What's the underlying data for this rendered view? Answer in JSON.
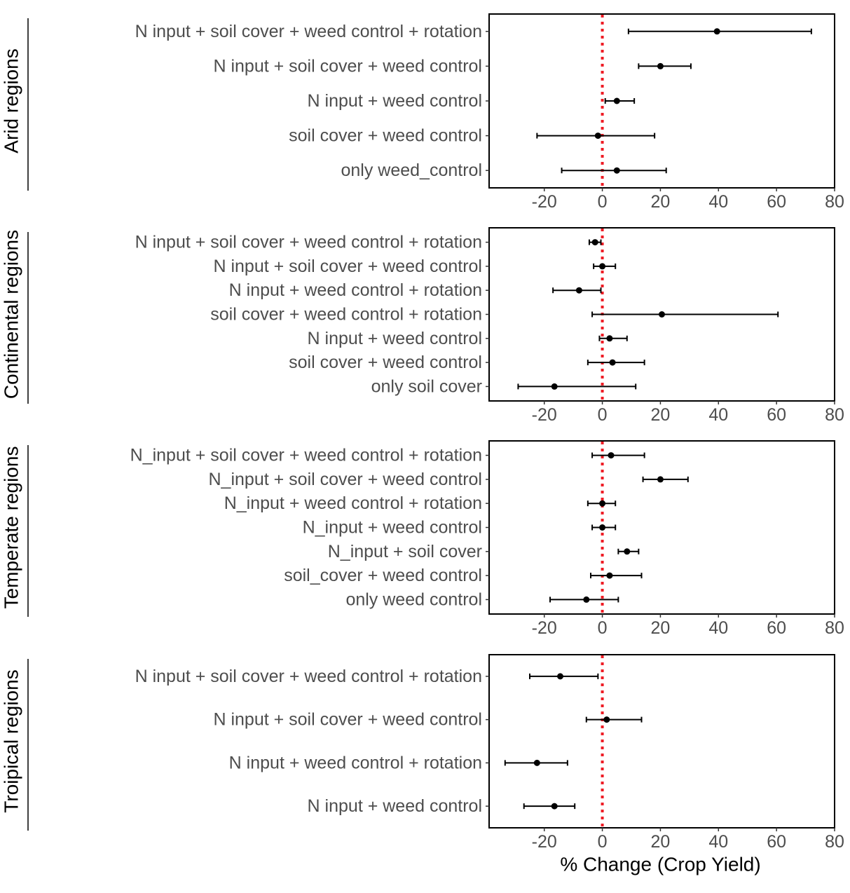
{
  "chart_data": {
    "type": "forest",
    "xlabel": "% Change (Crop Yield)",
    "xlim": [
      -39,
      80
    ],
    "xticks": [
      -20,
      0,
      20,
      40,
      60,
      80
    ],
    "xtick_labels": [
      "-20",
      "0",
      "20",
      "40",
      "60",
      "80"
    ],
    "reference_line": 0,
    "colors": {
      "points": "#000000",
      "reference_line": "#ee1c25",
      "labels": "#4d4d4d"
    },
    "panels": [
      {
        "region": "Arid  regions",
        "rows": [
          {
            "label": "N input + soil cover + weed control + rotation",
            "estimate": 39.5,
            "lower": 9,
            "upper": 72
          },
          {
            "label": "N input + soil cover + weed control",
            "estimate": 20,
            "lower": 12.5,
            "upper": 30.5
          },
          {
            "label": "N input + weed control",
            "estimate": 5,
            "lower": 1,
            "upper": 11
          },
          {
            "label": "soil cover + weed control",
            "estimate": -1.5,
            "lower": -22.5,
            "upper": 18
          },
          {
            "label": "only weed_control",
            "estimate": 5,
            "lower": -14,
            "upper": 22
          }
        ]
      },
      {
        "region": "Continental  regions",
        "rows": [
          {
            "label": "N input  + soil cover  + weed control  + rotation",
            "estimate": -2.5,
            "lower": -4.5,
            "upper": -0.5
          },
          {
            "label": "N input  + soil cover  + weed control",
            "estimate": 0,
            "lower": -3,
            "upper": 4.5
          },
          {
            "label": "N input  + weed control  + rotation",
            "estimate": -8,
            "lower": -17,
            "upper": -0.5
          },
          {
            "label": "soil cover  + weed control  + rotation",
            "estimate": 20.5,
            "lower": -3.5,
            "upper": 60.5
          },
          {
            "label": "N input  + weed control",
            "estimate": 2.5,
            "lower": -1,
            "upper": 8.5
          },
          {
            "label": "soil cover  + weed control",
            "estimate": 3.5,
            "lower": -5,
            "upper": 14.5
          },
          {
            "label": "only soil cover",
            "estimate": -16.5,
            "lower": -29,
            "upper": 11.5
          }
        ]
      },
      {
        "region": "Temperate  regions",
        "rows": [
          {
            "label": "N_input + soil cover + weed control + rotation",
            "estimate": 3,
            "lower": -3.5,
            "upper": 14.5
          },
          {
            "label": "N_input + soil cover + weed control",
            "estimate": 20,
            "lower": 14,
            "upper": 29.5
          },
          {
            "label": "N_input + weed control + rotation",
            "estimate": 0,
            "lower": -5,
            "upper": 4.5
          },
          {
            "label": "N_input + weed control",
            "estimate": 0,
            "lower": -3.5,
            "upper": 4.5
          },
          {
            "label": "N_input + soil cover",
            "estimate": 8.5,
            "lower": 5.5,
            "upper": 12.5
          },
          {
            "label": "soil_cover + weed control",
            "estimate": 2.5,
            "lower": -4,
            "upper": 13.5
          },
          {
            "label": "only weed control",
            "estimate": -5.5,
            "lower": -18,
            "upper": 5.5
          }
        ]
      },
      {
        "region": "Troipical  regions",
        "rows": [
          {
            "label": "N input  + soil cover  + weed control  + rotation",
            "estimate": -14.5,
            "lower": -25,
            "upper": -1.5
          },
          {
            "label": "N input  + soil cover  + weed control",
            "estimate": 1.5,
            "lower": -5.5,
            "upper": 13.5
          },
          {
            "label": "N input  + weed control  + rotation",
            "estimate": -22.5,
            "lower": -33.5,
            "upper": -12
          },
          {
            "label": "N input  + weed control",
            "estimate": -16.5,
            "lower": -27,
            "upper": -9.5
          }
        ]
      }
    ]
  }
}
